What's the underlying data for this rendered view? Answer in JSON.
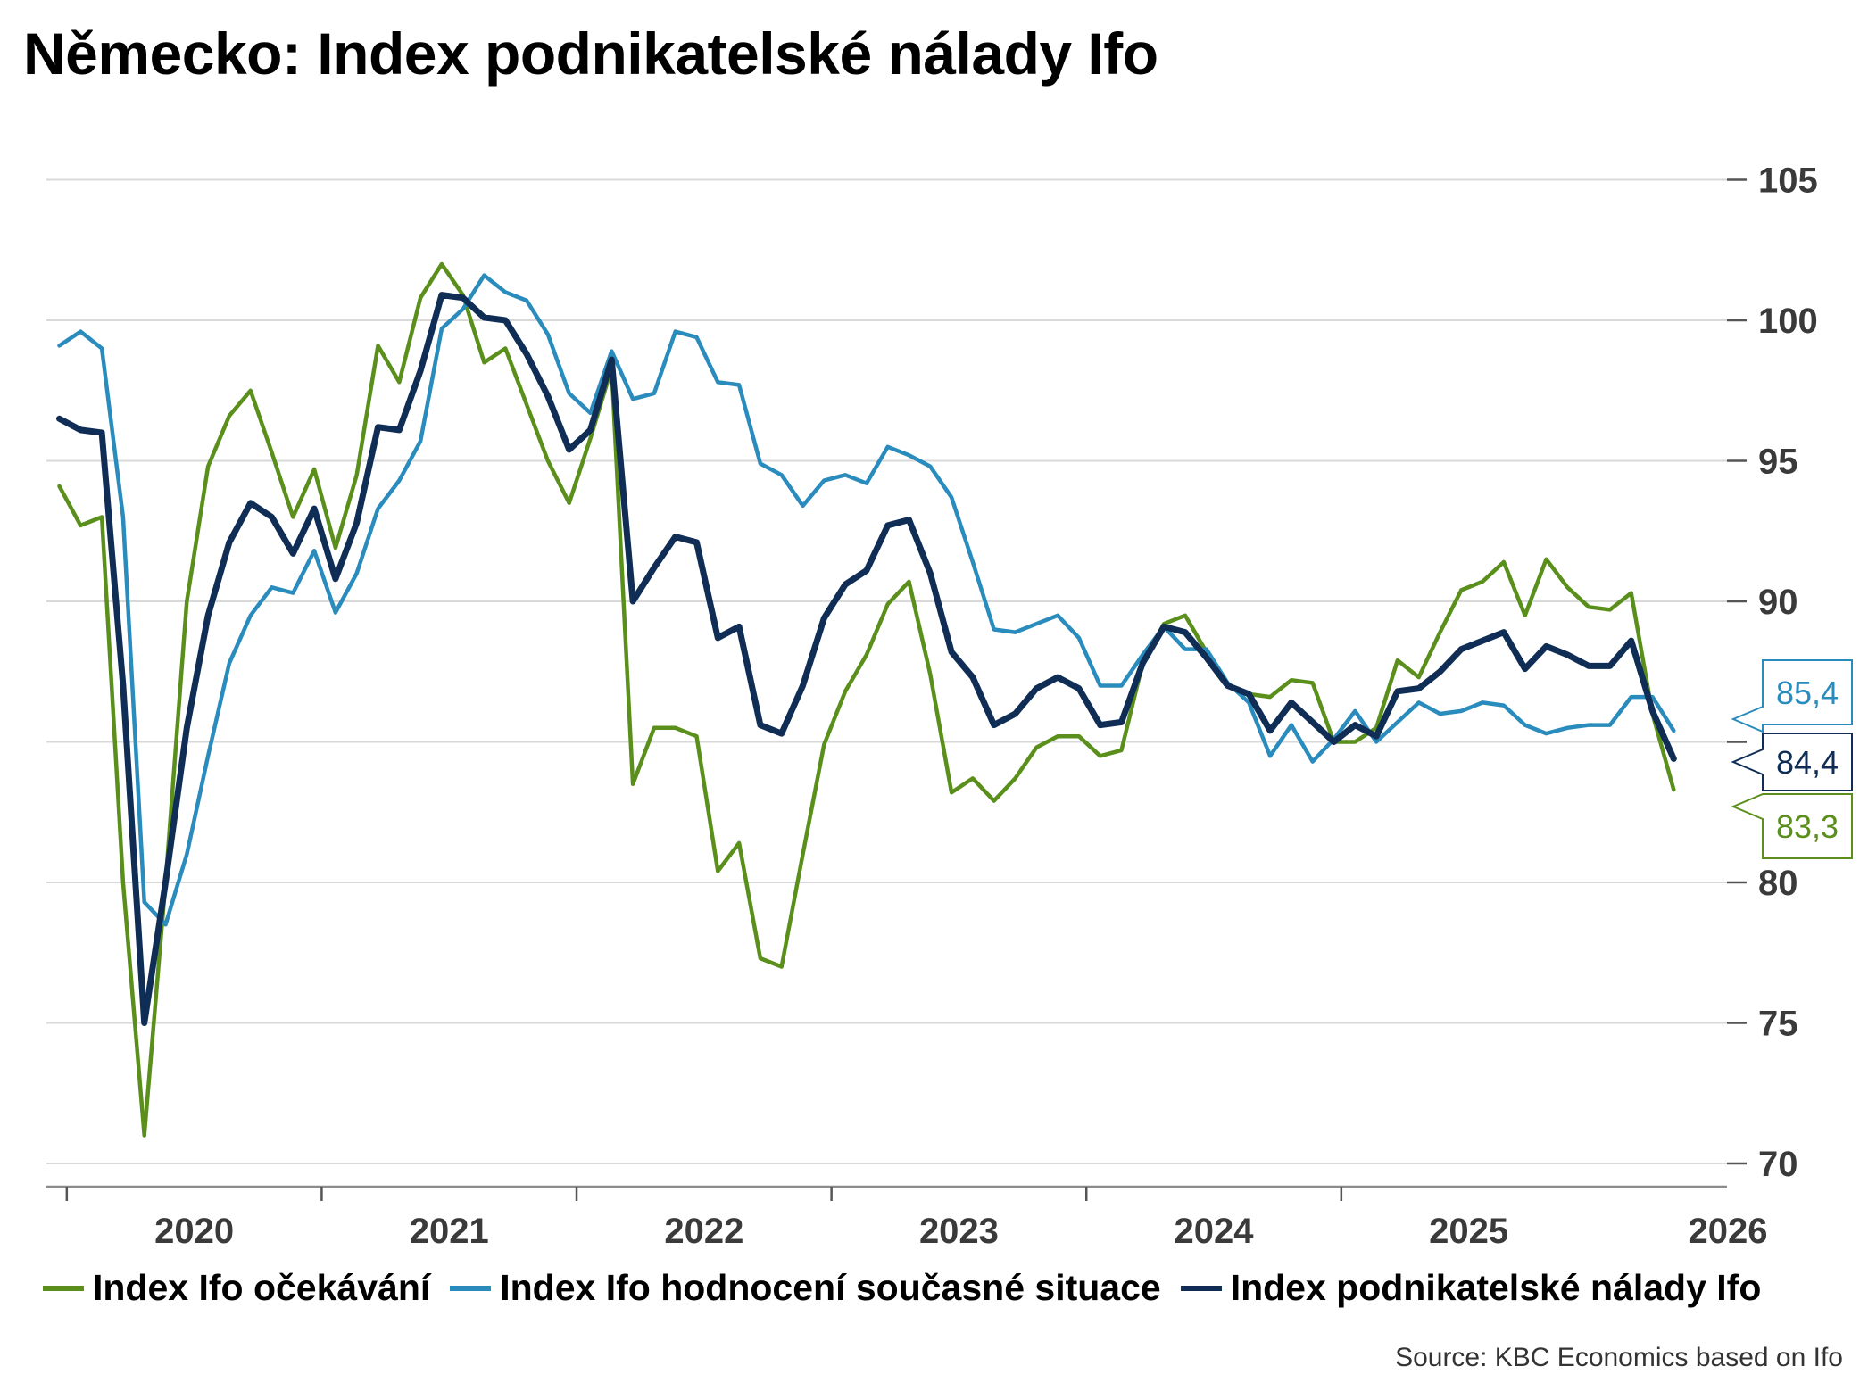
{
  "title": "Německo: Index podnikatelské nálady Ifo",
  "source": "Source: KBC Economics based on Ifo",
  "colors": {
    "expectations": "#5a8f1c",
    "current": "#2a8bbd",
    "climate": "#0f2d55",
    "grid": "#d9d9d9",
    "axis": "#8c8c8c"
  },
  "chart_data": {
    "type": "line",
    "title": "Německo: Index podnikatelské nálady Ifo",
    "xlabel": "",
    "ylabel": "",
    "ylim": [
      69,
      107
    ],
    "y_ticks": [
      70,
      75,
      80,
      85,
      90,
      95,
      100,
      105
    ],
    "y_tick_labels": [
      "70",
      "75",
      "80",
      "",
      "90",
      "95",
      "100",
      "105"
    ],
    "x_ticks": [
      "2020",
      "2021",
      "2022",
      "2023",
      "2024",
      "2025",
      "2026"
    ],
    "x_start": "2019-12",
    "grid": true,
    "legend_position": "bottom",
    "series": [
      {
        "key": "expectations",
        "name": "Index Ifo očekávání",
        "last_label": "83,3",
        "values": [
          94.1,
          92.7,
          93.0,
          80.0,
          71.0,
          80.0,
          90.0,
          94.8,
          96.6,
          97.5,
          95.3,
          93.0,
          94.7,
          91.9,
          94.5,
          99.1,
          97.8,
          100.8,
          102.0,
          100.9,
          98.5,
          99.0,
          97.0,
          95.0,
          93.5,
          95.8,
          98.3,
          83.5,
          85.5,
          85.5,
          85.2,
          80.4,
          81.4,
          77.3,
          77.0,
          81.0,
          84.9,
          86.8,
          88.1,
          89.9,
          90.7,
          87.4,
          83.2,
          83.7,
          82.9,
          83.7,
          84.8,
          85.2,
          85.2,
          84.5,
          84.7,
          87.8,
          89.2,
          89.5,
          88.2,
          87.0,
          86.7,
          86.6,
          87.2,
          87.1,
          85.0,
          85.0,
          85.5,
          87.9,
          87.3,
          88.9,
          90.4,
          90.7,
          91.4,
          89.5,
          91.5,
          90.5,
          89.8,
          89.7,
          90.3,
          86.0,
          83.3
        ]
      },
      {
        "key": "current",
        "name": "Index Ifo hodnocení současné situace",
        "last_label": "85,4",
        "values": [
          99.1,
          99.6,
          99.0,
          93.0,
          79.3,
          78.5,
          81.0,
          84.5,
          87.8,
          89.5,
          90.5,
          90.3,
          91.8,
          89.6,
          91.0,
          93.3,
          94.3,
          95.7,
          99.7,
          100.4,
          101.6,
          101.0,
          100.7,
          99.5,
          97.4,
          96.7,
          98.9,
          97.2,
          97.4,
          99.6,
          99.4,
          97.8,
          97.7,
          94.9,
          94.5,
          93.4,
          94.3,
          94.5,
          94.2,
          95.5,
          95.2,
          94.8,
          93.7,
          91.4,
          89.0,
          88.9,
          89.2,
          89.5,
          88.7,
          87.0,
          87.0,
          88.1,
          89.1,
          88.3,
          88.3,
          87.1,
          86.4,
          84.5,
          85.6,
          84.3,
          85.1,
          86.1,
          85.0,
          85.7,
          86.4,
          86.0,
          86.1,
          86.4,
          86.3,
          85.6,
          85.3,
          85.5,
          85.6,
          85.6,
          86.6,
          86.6,
          85.4
        ]
      },
      {
        "key": "climate",
        "name": "Index podnikatelské nálady Ifo",
        "last_label": "84,4",
        "values": [
          96.5,
          96.1,
          96.0,
          87.0,
          75.0,
          80.0,
          85.5,
          89.5,
          92.1,
          93.5,
          93.0,
          91.7,
          93.3,
          90.8,
          92.8,
          96.2,
          96.1,
          98.2,
          100.9,
          100.8,
          100.1,
          100.0,
          98.8,
          97.3,
          95.4,
          96.1,
          98.6,
          90.0,
          91.2,
          92.3,
          92.1,
          88.7,
          89.1,
          85.6,
          85.3,
          87.0,
          89.4,
          90.6,
          91.1,
          92.7,
          92.9,
          91.0,
          88.2,
          87.3,
          85.6,
          86.0,
          86.9,
          87.3,
          86.9,
          85.6,
          85.7,
          87.8,
          89.1,
          88.9,
          88.0,
          87.0,
          86.7,
          85.4,
          86.4,
          85.7,
          85.0,
          85.6,
          85.2,
          86.8,
          86.9,
          87.5,
          88.3,
          88.6,
          88.9,
          87.6,
          88.4,
          88.1,
          87.7,
          87.7,
          88.6,
          86.1,
          84.4
        ]
      }
    ]
  }
}
